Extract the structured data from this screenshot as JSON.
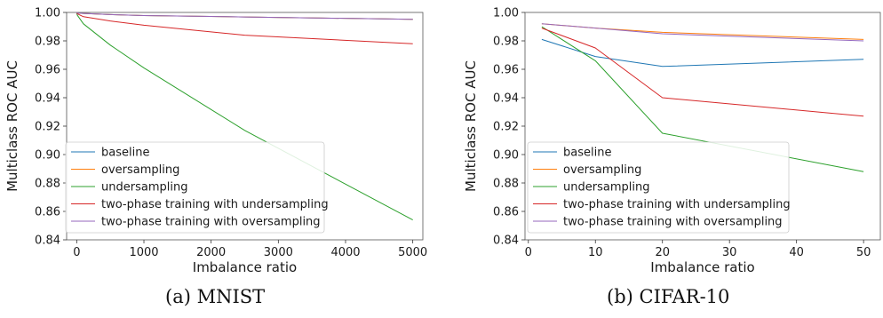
{
  "captions": [
    "(a) MNIST",
    "(b) CIFAR-10"
  ],
  "chart_data": [
    {
      "type": "line",
      "title": "",
      "xlabel": "Imbalance ratio",
      "ylabel": "Multiclass ROC AUC",
      "xlim": [
        -150,
        5150
      ],
      "ylim": [
        0.84,
        1.0
      ],
      "xticks": [
        0,
        1000,
        2000,
        3000,
        4000,
        5000
      ],
      "yticks": [
        0.84,
        0.86,
        0.88,
        0.9,
        0.92,
        0.94,
        0.96,
        0.98,
        1.0
      ],
      "ytick_labels": [
        "0.84",
        "0.86",
        "0.88",
        "0.90",
        "0.92",
        "0.94",
        "0.96",
        "0.98",
        "1.00"
      ],
      "grid": false,
      "legend_position": "lower-left",
      "series": [
        {
          "name": "baseline",
          "color": "#1f77b4",
          "x": [
            0,
            10,
            100,
            500,
            1000,
            2500,
            5000
          ],
          "y": [
            0.9995,
            0.9995,
            0.9993,
            0.9985,
            0.9978,
            0.9968,
            0.9952
          ]
        },
        {
          "name": "oversampling",
          "color": "#ff7f0e",
          "x": [
            0,
            10,
            100,
            500,
            1000,
            2500,
            5000
          ],
          "y": [
            0.9995,
            0.9995,
            0.9993,
            0.9985,
            0.9978,
            0.9968,
            0.9952
          ]
        },
        {
          "name": "undersampling",
          "color": "#2ca02c",
          "x": [
            0,
            10,
            100,
            500,
            1000,
            2500,
            5000
          ],
          "y": [
            0.9995,
            0.998,
            0.992,
            0.977,
            0.961,
            0.917,
            0.854
          ]
        },
        {
          "name": "two-phase training with undersampling",
          "color": "#d62728",
          "x": [
            0,
            10,
            100,
            500,
            1000,
            2500,
            5000
          ],
          "y": [
            0.9995,
            0.999,
            0.997,
            0.994,
            0.991,
            0.984,
            0.978
          ]
        },
        {
          "name": "two-phase training with oversampling",
          "color": "#9467bd",
          "x": [
            0,
            10,
            100,
            500,
            1000,
            2500,
            5000
          ],
          "y": [
            0.9995,
            0.9995,
            0.9993,
            0.9985,
            0.9978,
            0.9968,
            0.9952
          ]
        }
      ]
    },
    {
      "type": "line",
      "title": "",
      "xlabel": "Imbalance ratio",
      "ylabel": "Multiclass ROC AUC",
      "xlim": [
        -0.5,
        52.5
      ],
      "ylim": [
        0.84,
        1.0
      ],
      "xticks": [
        0,
        10,
        20,
        30,
        40,
        50
      ],
      "yticks": [
        0.84,
        0.86,
        0.88,
        0.9,
        0.92,
        0.94,
        0.96,
        0.98,
        1.0
      ],
      "ytick_labels": [
        "0.84",
        "0.86",
        "0.88",
        "0.90",
        "0.92",
        "0.94",
        "0.96",
        "0.98",
        "1.00"
      ],
      "grid": false,
      "legend_position": "lower-left",
      "series": [
        {
          "name": "baseline",
          "color": "#1f77b4",
          "x": [
            2,
            10,
            20,
            50
          ],
          "y": [
            0.981,
            0.969,
            0.962,
            0.967
          ]
        },
        {
          "name": "oversampling",
          "color": "#ff7f0e",
          "x": [
            2,
            10,
            20,
            50
          ],
          "y": [
            0.992,
            0.989,
            0.986,
            0.981
          ]
        },
        {
          "name": "undersampling",
          "color": "#2ca02c",
          "x": [
            2,
            10,
            20,
            50
          ],
          "y": [
            0.99,
            0.966,
            0.915,
            0.888
          ]
        },
        {
          "name": "two-phase training with undersampling",
          "color": "#d62728",
          "x": [
            2,
            10,
            20,
            50
          ],
          "y": [
            0.989,
            0.975,
            0.94,
            0.927
          ]
        },
        {
          "name": "two-phase training with oversampling",
          "color": "#9467bd",
          "x": [
            2,
            10,
            20,
            50
          ],
          "y": [
            0.992,
            0.989,
            0.985,
            0.98
          ]
        }
      ]
    }
  ]
}
